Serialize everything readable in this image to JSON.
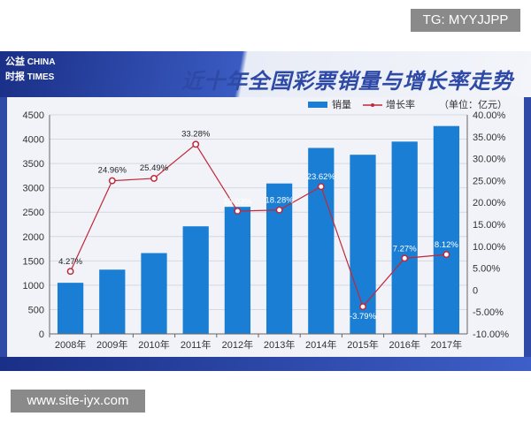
{
  "tag": "TG: MYYJJPP",
  "watermark": "www.site-iyx.com",
  "logo": {
    "line1": "公益",
    "line2": "CHINA",
    "line3": "时报",
    "line4": "TIMES"
  },
  "chart_data": {
    "type": "bar",
    "title": "近十年全国彩票销量与增长率走势图",
    "unit": "（单位：亿元）",
    "categories": [
      "2008年",
      "2009年",
      "2010年",
      "2011年",
      "2012年",
      "2013年",
      "2014年",
      "2015年",
      "2016年",
      "2017年"
    ],
    "series": [
      {
        "name": "销量",
        "type": "bar",
        "axis": "left",
        "color": "#1a7fd4",
        "values": [
          1050,
          1320,
          1660,
          2210,
          2610,
          3090,
          3820,
          3680,
          3950,
          4270
        ]
      },
      {
        "name": "增长率",
        "type": "line",
        "axis": "right",
        "color": "#c0283a",
        "values": [
          4.27,
          24.96,
          25.49,
          33.28,
          18.03,
          18.28,
          23.62,
          -3.79,
          7.27,
          8.12
        ],
        "labels": [
          "4.27%",
          "24.96%",
          "25.49%",
          "33.28%",
          "18.03%",
          "18.28%",
          "23.62%",
          "-3.79%",
          "7.27%",
          "8.12%"
        ]
      }
    ],
    "ylim_left": [
      0,
      4500
    ],
    "ylim_right": [
      -10,
      40
    ],
    "yticks_left": [
      "0",
      "500",
      "1000",
      "1500",
      "2000",
      "2500",
      "3000",
      "3500",
      "4000",
      "4500"
    ],
    "yticks_right": [
      "-10.00%",
      "-5.00%",
      "0",
      "5.00%",
      "10.00%",
      "15.00%",
      "20.00%",
      "25.00%",
      "30.00%",
      "35.00%",
      "40.00%"
    ],
    "grid": true,
    "legend_placement": "top-right"
  }
}
